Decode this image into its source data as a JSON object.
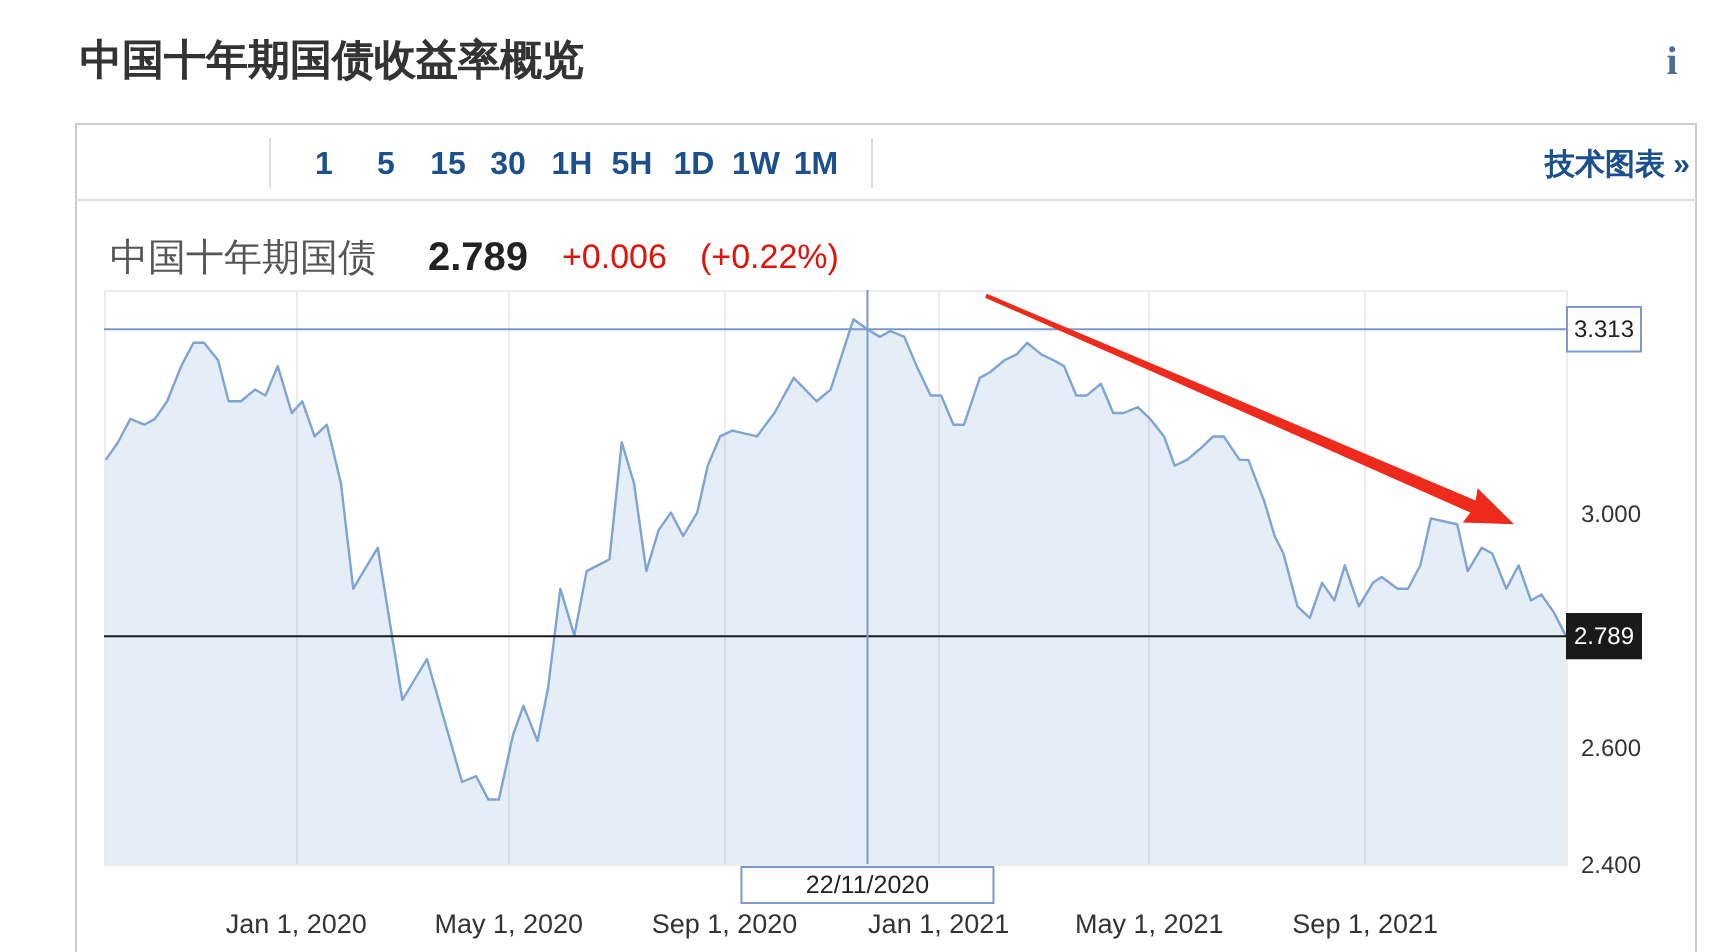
{
  "chart_data": {
    "type": "area",
    "title": "中国十年期国债收益率概览",
    "subtitle": "中国十年期国债",
    "annotations": [
      "1 5 15 30 1H 5H 1D 1W 1M",
      "技术图表 »",
      "i",
      "2.789",
      "+0.006",
      "(+0.22%)"
    ],
    "x": [
      "2019-09-15",
      "2019-09-22",
      "2019-09-29",
      "2019-10-07",
      "2019-10-13",
      "2019-10-20",
      "2019-10-28",
      "2019-11-04",
      "2019-11-10",
      "2019-11-18",
      "2019-11-24",
      "2019-12-01",
      "2019-12-09",
      "2019-12-15",
      "2019-12-22",
      "2019-12-30",
      "2020-01-05",
      "2020-01-12",
      "2020-01-19",
      "2020-01-27",
      "2020-02-03",
      "2020-02-17",
      "2020-03-02",
      "2020-03-16",
      "2020-04-05",
      "2020-04-13",
      "2020-04-20",
      "2020-04-26",
      "2020-05-04",
      "2020-05-10",
      "2020-05-18",
      "2020-05-24",
      "2020-05-31",
      "2020-06-08",
      "2020-06-15",
      "2020-06-28",
      "2020-07-05",
      "2020-07-12",
      "2020-07-19",
      "2020-07-26",
      "2020-08-02",
      "2020-08-09",
      "2020-08-17",
      "2020-08-23",
      "2020-08-30",
      "2020-09-06",
      "2020-09-20",
      "2020-09-30",
      "2020-10-11",
      "2020-10-24",
      "2020-11-01",
      "2020-11-14",
      "2020-11-22",
      "2020-11-29",
      "2020-12-05",
      "2020-12-13",
      "2020-12-20",
      "2020-12-28",
      "2021-01-03",
      "2021-01-10",
      "2021-01-16",
      "2021-01-25",
      "2021-01-31",
      "2021-02-08",
      "2021-02-15",
      "2021-02-21",
      "2021-03-01",
      "2021-03-08",
      "2021-03-14",
      "2021-03-21",
      "2021-03-27",
      "2021-04-04",
      "2021-04-11",
      "2021-04-17",
      "2021-04-25",
      "2021-05-02",
      "2021-05-10",
      "2021-05-16",
      "2021-05-23",
      "2021-05-31",
      "2021-06-07",
      "2021-06-13",
      "2021-06-22",
      "2021-06-27",
      "2021-07-06",
      "2021-07-12",
      "2021-07-17",
      "2021-07-25",
      "2021-08-01",
      "2021-08-08",
      "2021-08-15",
      "2021-08-21",
      "2021-08-29",
      "2021-09-06",
      "2021-09-11",
      "2021-09-20",
      "2021-09-26",
      "2021-10-03",
      "2021-10-09",
      "2021-10-24",
      "2021-10-30",
      "2021-11-07",
      "2021-11-13",
      "2021-11-21",
      "2021-11-28",
      "2021-12-05",
      "2021-12-11",
      "2021-12-18",
      "2021-12-25"
    ],
    "series": [
      {
        "color": "#7ea4d4",
        "values": [
          3.09,
          3.12,
          3.16,
          3.15,
          3.16,
          3.19,
          3.25,
          3.29,
          3.29,
          3.26,
          3.19,
          3.19,
          3.21,
          3.2,
          3.25,
          3.17,
          3.19,
          3.13,
          3.15,
          3.05,
          2.87,
          2.94,
          2.68,
          2.75,
          2.54,
          2.55,
          2.51,
          2.51,
          2.62,
          2.67,
          2.61,
          2.7,
          2.87,
          2.79,
          2.9,
          2.92,
          3.12,
          3.05,
          2.9,
          2.97,
          3.0,
          2.96,
          3.0,
          3.08,
          3.13,
          3.14,
          3.13,
          3.17,
          3.23,
          3.19,
          3.21,
          3.33,
          3.313,
          3.3,
          3.31,
          3.3,
          3.25,
          3.2,
          3.2,
          3.15,
          3.15,
          3.23,
          3.24,
          3.26,
          3.27,
          3.29,
          3.27,
          3.26,
          3.25,
          3.2,
          3.2,
          3.22,
          3.17,
          3.17,
          3.18,
          3.16,
          3.13,
          3.08,
          3.09,
          3.11,
          3.13,
          3.13,
          3.09,
          3.09,
          3.02,
          2.96,
          2.93,
          2.84,
          2.82,
          2.88,
          2.85,
          2.91,
          2.84,
          2.88,
          2.89,
          2.87,
          2.87,
          2.91,
          2.99,
          2.98,
          2.9,
          2.94,
          2.93,
          2.87,
          2.91,
          2.85,
          2.86,
          2.83,
          2.789
        ]
      }
    ],
    "xlim": [
      "2019-09-14",
      "2021-12-25"
    ],
    "xticks": [
      {
        "value": "2020-01-01",
        "label": "Jan 1, 2020"
      },
      {
        "value": "2020-05-01",
        "label": "May 1, 2020"
      },
      {
        "value": "2020-09-01",
        "label": "Sep 1, 2020"
      },
      {
        "value": "2021-01-01",
        "label": "Jan 1, 2021"
      },
      {
        "value": "2021-05-01",
        "label": "May 1, 2021"
      },
      {
        "value": "2021-09-01",
        "label": "Sep 1, 2021"
      }
    ],
    "ylim": [
      2.4,
      3.38
    ],
    "yticks": [
      {
        "value": 2.4,
        "label": "2.400"
      },
      {
        "value": 2.6,
        "label": "2.600"
      },
      {
        "value": 3.0,
        "label": "3.000"
      }
    ],
    "ref_lines": [
      {
        "axis": "y",
        "value": 3.313,
        "label": "3.313",
        "color": "#7a9bcc"
      },
      {
        "axis": "y",
        "value": 2.789,
        "label": "2.789",
        "color": "#1a1a1a"
      },
      {
        "axis": "x",
        "value": "2020-11-22",
        "label": "22/11/2020",
        "color": "#7a9bcc"
      }
    ],
    "grid": "x"
  }
}
